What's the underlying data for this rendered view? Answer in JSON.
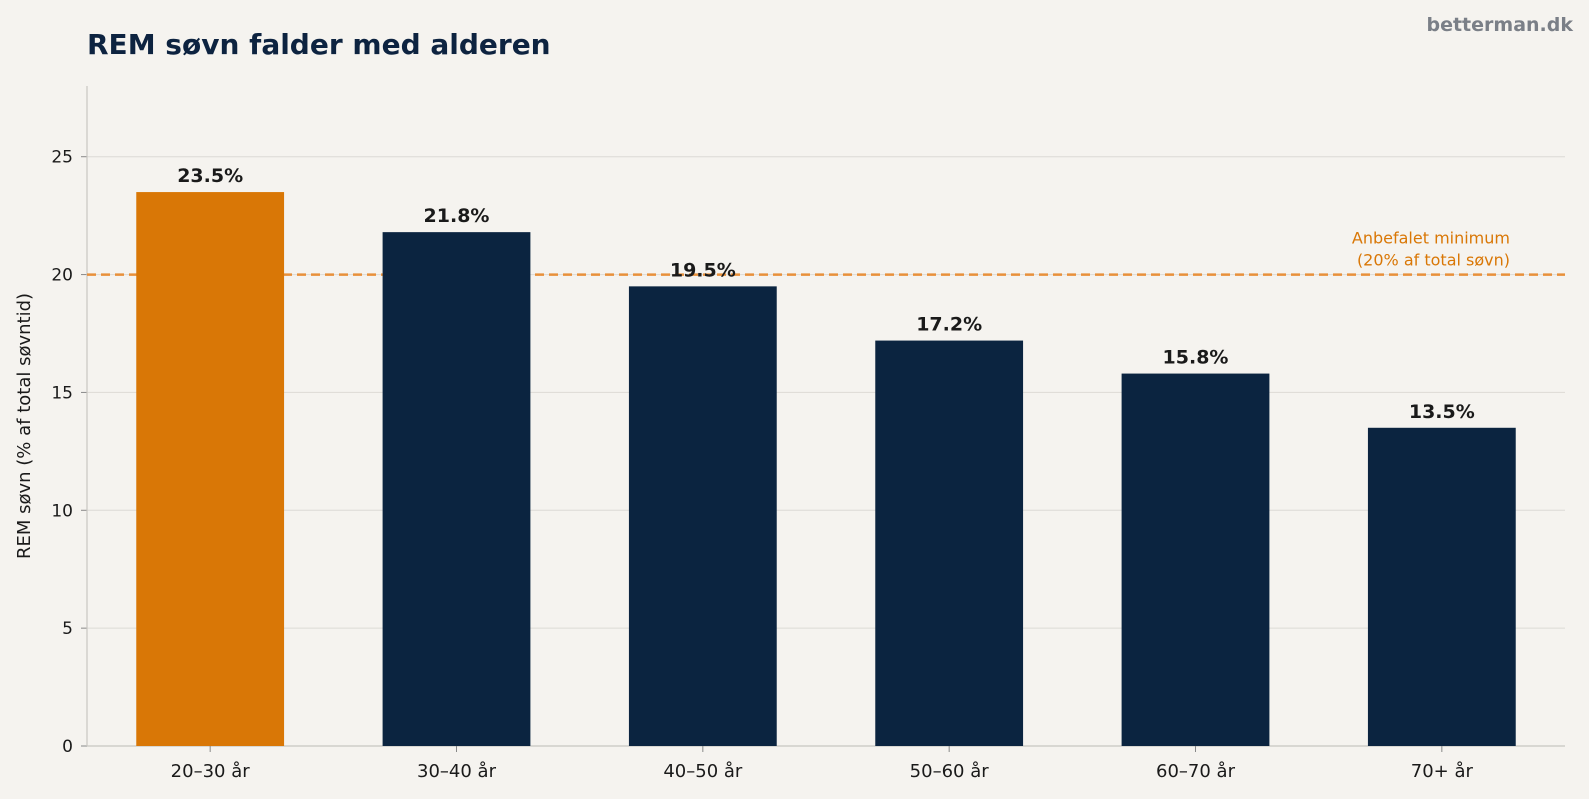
{
  "header": {
    "title": "REM søvn falder med alderen",
    "brand": "betterman.dk"
  },
  "colors": {
    "background": "#f5f3ef",
    "title": "#0d2340",
    "highlight_bar": "#d97706",
    "bar": "#0b2440",
    "reference_line": "#e8903a",
    "reference_text": "#d97706",
    "brand": "#7a7f87"
  },
  "chart_data": {
    "type": "bar",
    "title": "REM søvn falder med alderen",
    "xlabel": "",
    "ylabel": "REM søvn (% af total søvntid)",
    "categories": [
      "20–30 år",
      "30–40 år",
      "40–50 år",
      "50–60 år",
      "60–70 år",
      "70+ år"
    ],
    "values": [
      23.5,
      21.8,
      19.5,
      17.2,
      15.8,
      13.5
    ],
    "value_labels": [
      "23.5%",
      "21.8%",
      "19.5%",
      "17.2%",
      "15.8%",
      "13.5%"
    ],
    "highlight_index": 0,
    "ylim": [
      0,
      28
    ],
    "yticks": [
      0,
      5,
      10,
      15,
      20,
      25
    ],
    "grid": "horizontal",
    "reference_line": {
      "value": 20,
      "style": "dashed",
      "label_line1": "Anbefalet minimum",
      "label_line2": "(20% af total søvn)"
    }
  }
}
